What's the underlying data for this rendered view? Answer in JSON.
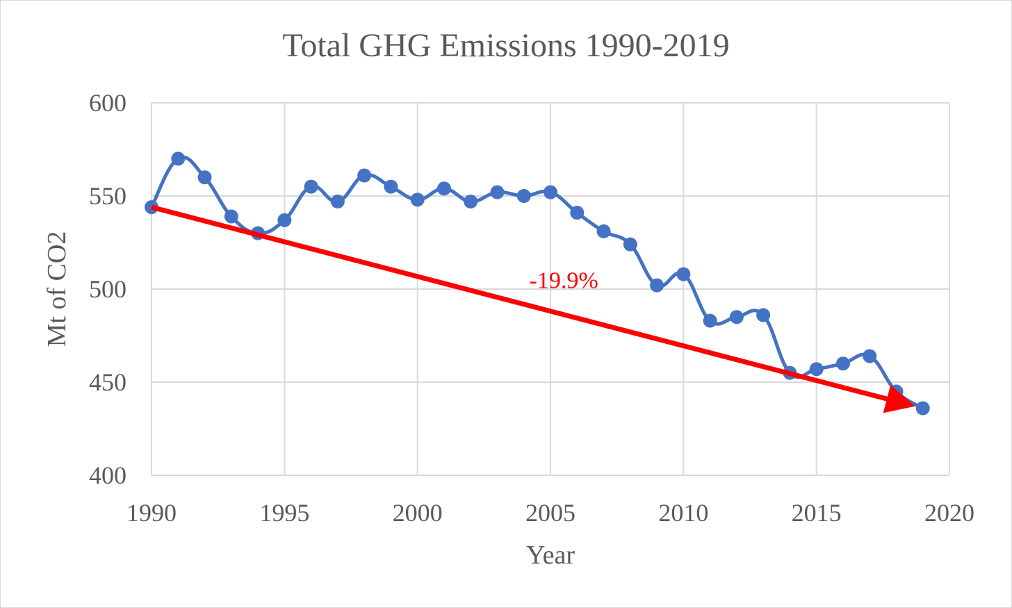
{
  "chart_data": {
    "type": "line",
    "title": "Total GHG Emissions 1990-2019",
    "xlabel": "Year",
    "ylabel": "Mt of CO2",
    "xlim": [
      1990,
      2020
    ],
    "ylim": [
      400,
      600
    ],
    "x_ticks": [
      1990,
      1995,
      2000,
      2005,
      2010,
      2015,
      2020
    ],
    "y_ticks": [
      400,
      450,
      500,
      550,
      600
    ],
    "grid": true,
    "series": [
      {
        "color": "#4472c4",
        "x": [
          1990,
          1991,
          1992,
          1993,
          1994,
          1995,
          1996,
          1997,
          1998,
          1999,
          2000,
          2001,
          2002,
          2003,
          2004,
          2005,
          2006,
          2007,
          2008,
          2009,
          2010,
          2011,
          2012,
          2013,
          2014,
          2015,
          2016,
          2017,
          2018,
          2019
        ],
        "y": [
          544,
          570,
          560,
          539,
          530,
          537,
          555,
          547,
          561,
          555,
          548,
          554,
          547,
          552,
          550,
          552,
          541,
          531,
          524,
          502,
          508,
          483,
          485,
          486,
          455,
          457,
          460,
          464,
          445,
          436
        ]
      }
    ],
    "annotations": [
      {
        "type": "arrow",
        "from": [
          1990,
          544
        ],
        "to": [
          2019,
          436
        ],
        "color": "#ff0000",
        "label": "-19.9%",
        "label_at": [
          2005.5,
          505
        ]
      }
    ]
  }
}
